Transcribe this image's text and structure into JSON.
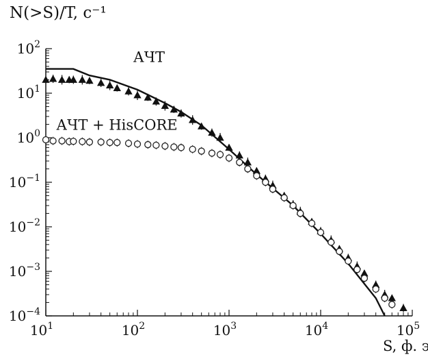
{
  "chart_data": {
    "type": "scatter",
    "title": "",
    "ylabel": "N(>S)/T, c⁻¹",
    "xlabel": "S, ф. э.",
    "xscale": "log",
    "yscale": "log",
    "xlim": [
      10,
      100000
    ],
    "ylim": [
      0.0001,
      100
    ],
    "xticks": [
      {
        "value": 10,
        "base": "10",
        "exp": "1"
      },
      {
        "value": 100,
        "base": "10",
        "exp": "2"
      },
      {
        "value": 1000,
        "base": "10",
        "exp": "3"
      },
      {
        "value": 10000,
        "base": "10",
        "exp": "4"
      },
      {
        "value": 100000,
        "base": "10",
        "exp": "5"
      }
    ],
    "yticks": [
      {
        "value": 0.0001,
        "base": "10",
        "exp": "−4"
      },
      {
        "value": 0.001,
        "base": "10",
        "exp": "−3"
      },
      {
        "value": 0.01,
        "base": "10",
        "exp": "−2"
      },
      {
        "value": 0.1,
        "base": "10",
        "exp": "−1"
      },
      {
        "value": 1,
        "base": "10",
        "exp": "0"
      },
      {
        "value": 10,
        "base": "10",
        "exp": "1"
      },
      {
        "value": 100,
        "base": "10",
        "exp": "2"
      }
    ],
    "annotations": [
      {
        "text": "АЧТ",
        "x": 90,
        "y": 50
      },
      {
        "text": "АЧТ + HisCORE",
        "x": 13,
        "y": 1.5
      }
    ],
    "series": [
      {
        "kind": "line",
        "x": [
          10,
          20,
          30,
          50,
          100,
          200,
          300,
          500,
          1000,
          2000,
          5000,
          10000,
          20000,
          40000,
          50000
        ],
        "y": [
          35,
          35,
          25,
          20,
          12,
          6,
          3.8,
          1.9,
          0.55,
          0.15,
          0.03,
          0.007,
          0.0015,
          0.00025,
          0.0001
        ]
      },
      {
        "kind": "points-filled",
        "x": [
          10,
          12,
          15,
          18,
          20,
          25,
          30,
          40,
          50,
          60,
          80,
          100,
          130,
          160,
          200,
          250,
          300,
          400,
          500,
          650,
          800,
          1000,
          1300,
          1600,
          2000,
          2500,
          3000,
          4000,
          5000,
          6000,
          8000,
          10000,
          13000,
          16000,
          20000,
          25000,
          30000,
          40000,
          50000,
          60000,
          80000
        ],
        "y": [
          20,
          21,
          20,
          20,
          20,
          20,
          19,
          17,
          15,
          13,
          11,
          9,
          8,
          6.5,
          5.2,
          4.3,
          3.5,
          2.5,
          1.8,
          1.3,
          1.0,
          0.6,
          0.4,
          0.28,
          0.18,
          0.12,
          0.085,
          0.05,
          0.032,
          0.022,
          0.013,
          0.008,
          0.005,
          0.0032,
          0.002,
          0.0013,
          0.0009,
          0.0005,
          0.0003,
          0.00025,
          0.00015
        ]
      },
      {
        "kind": "points-open",
        "x": [
          10,
          12,
          15,
          18,
          20,
          25,
          30,
          40,
          50,
          60,
          80,
          100,
          130,
          160,
          200,
          250,
          300,
          400,
          500,
          650,
          800,
          1000,
          1300,
          1600,
          2000,
          2500,
          3000,
          4000,
          5000,
          6000,
          8000,
          10000,
          13000,
          16000,
          20000,
          25000,
          30000,
          40000,
          50000,
          60000
        ],
        "y": [
          0.9,
          0.85,
          0.85,
          0.82,
          0.83,
          0.82,
          0.8,
          0.8,
          0.78,
          0.78,
          0.75,
          0.72,
          0.7,
          0.68,
          0.65,
          0.62,
          0.6,
          0.55,
          0.5,
          0.45,
          0.42,
          0.35,
          0.28,
          0.2,
          0.14,
          0.1,
          0.07,
          0.045,
          0.03,
          0.02,
          0.012,
          0.0075,
          0.0045,
          0.0028,
          0.0017,
          0.0011,
          0.0007,
          0.0004,
          0.00025,
          0.00018
        ]
      }
    ]
  }
}
